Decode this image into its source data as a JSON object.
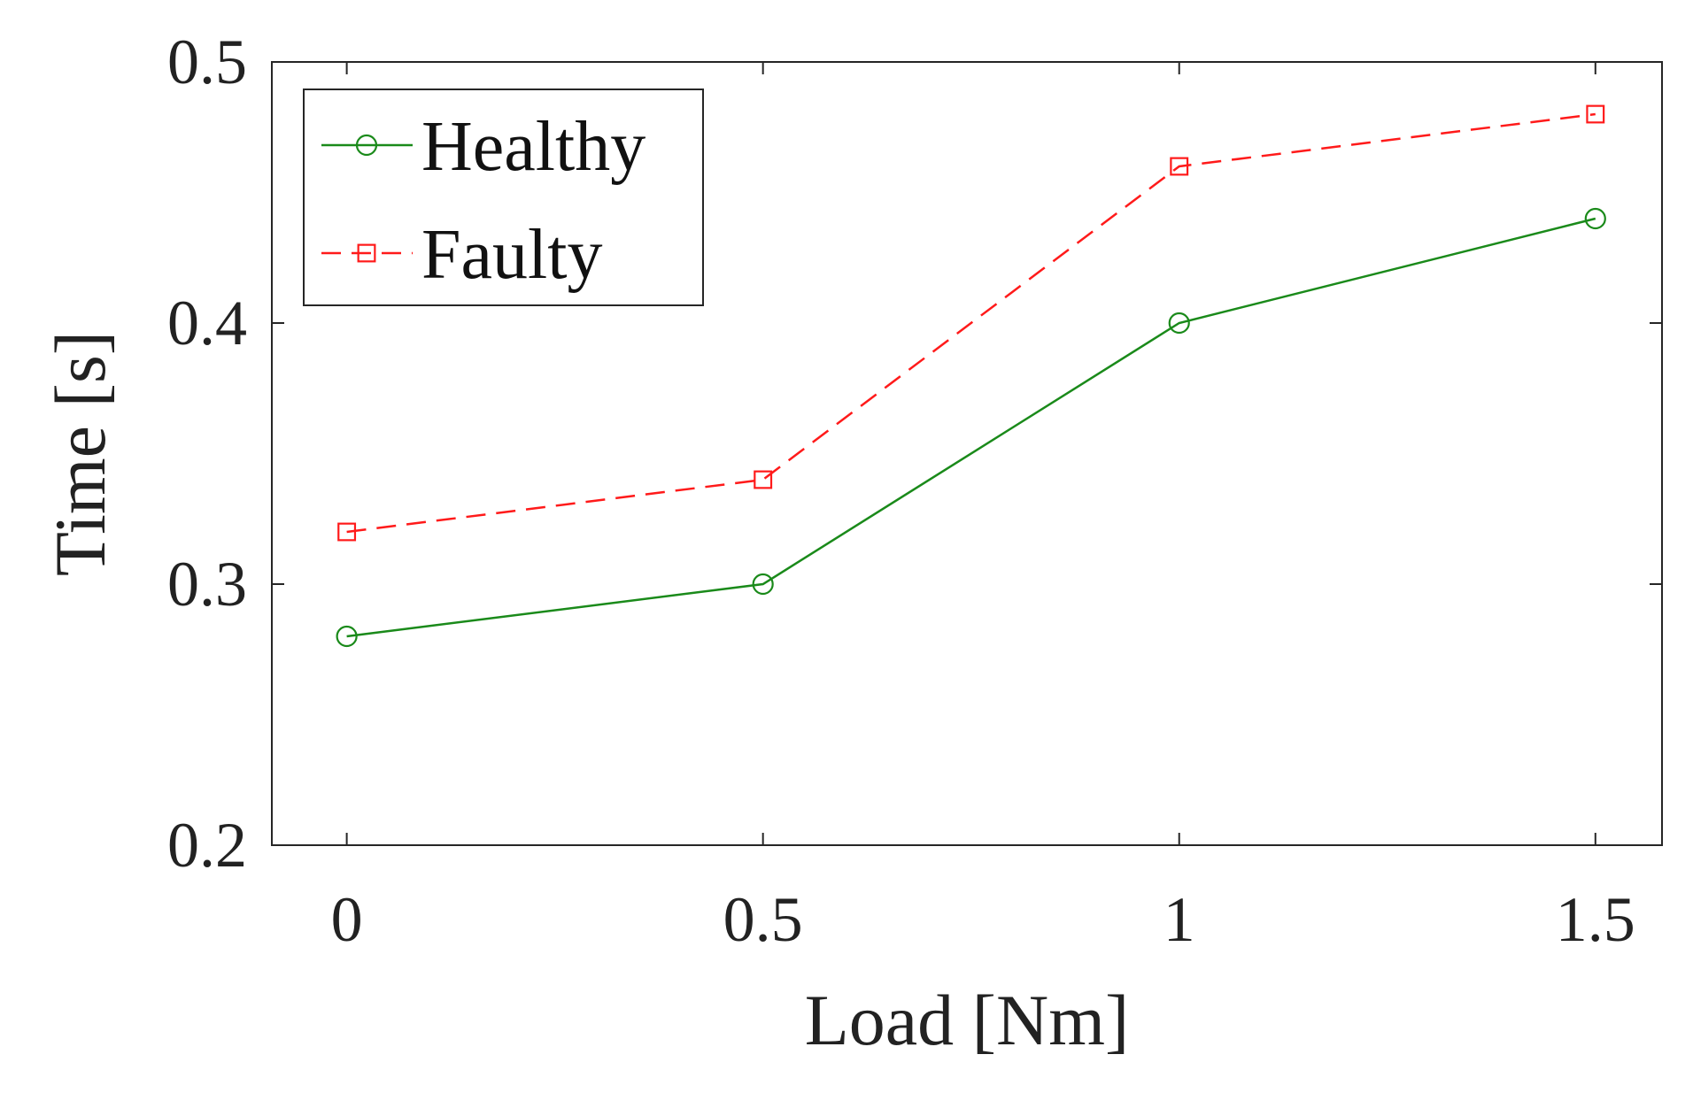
{
  "chart_data": {
    "type": "line",
    "title": "",
    "xlabel": "Load [Nm]",
    "ylabel": "Time [s]",
    "xlim": [
      -0.09,
      1.58
    ],
    "ylim": [
      0.2,
      0.5
    ],
    "grid": false,
    "legend_position": "top-left",
    "x": [
      0,
      0.5,
      1,
      1.5
    ],
    "x_ticks": [
      0,
      0.5,
      1,
      1.5
    ],
    "x_tick_labels": [
      "0",
      "0.5",
      "1",
      "1.5"
    ],
    "y_ticks": [
      0.2,
      0.3,
      0.4,
      0.5
    ],
    "y_tick_labels": [
      "0.2",
      "0.3",
      "0.4",
      "0.5"
    ],
    "series": [
      {
        "name": "Healthy",
        "values": [
          0.28,
          0.3,
          0.4,
          0.44
        ],
        "color": "#1a8a1a",
        "line_style": "solid",
        "marker": "circle"
      },
      {
        "name": "Faulty",
        "values": [
          0.32,
          0.34,
          0.46,
          0.48
        ],
        "color": "#ff1a1a",
        "line_style": "dashed",
        "marker": "square"
      }
    ]
  }
}
